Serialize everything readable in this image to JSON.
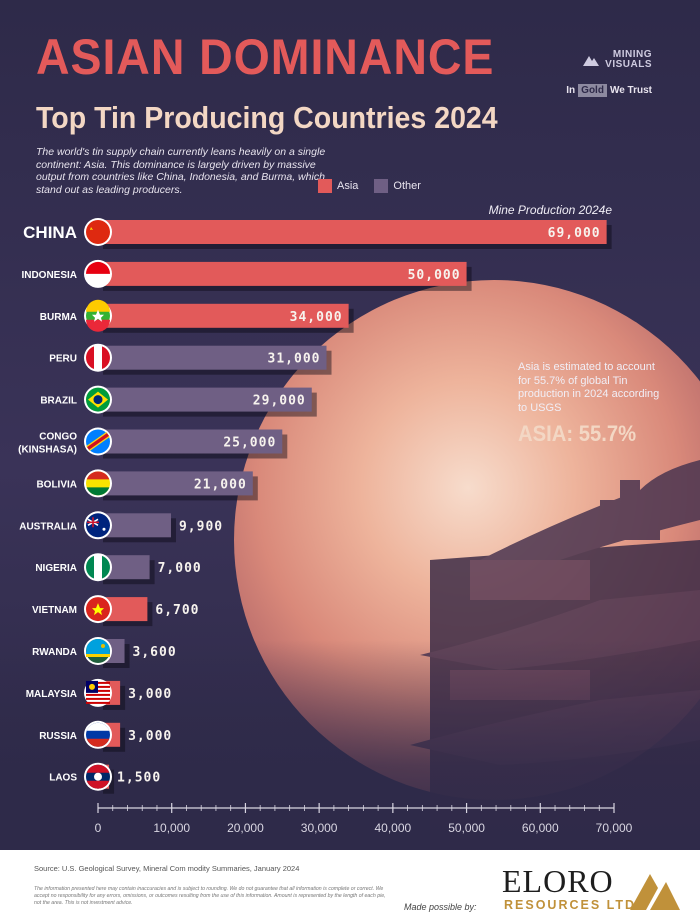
{
  "header": {
    "title": "ASIAN DOMINANCE",
    "subtitle": "Top Tin Producing Countries 2024",
    "intro": "The world's tin supply chain currently leans heavily on a single continent: Asia. This dominance is largely driven by massive output from countries like China, Indonesia, and Burma, which stand out as leading producers."
  },
  "brand": {
    "mining_visuals": "MINING\nVISUALS",
    "in": "In",
    "gold": "Gold",
    "we_trust": "We Trust"
  },
  "annotation": {
    "text": "Asia is estimated to account for 55.7% of global Tin production in 2024 according to USGS",
    "highlight": "ASIA: 55.7%"
  },
  "colors": {
    "asia": "#e25a5a",
    "other": "#6f5f84",
    "axis": "#d9d6e2"
  },
  "chart_data": {
    "type": "bar",
    "orientation": "horizontal",
    "title": "Top Tin Producing Countries 2024",
    "xlabel": "Mine Production 2024e",
    "xlim": [
      0,
      70000
    ],
    "xticks": [
      0,
      10000,
      20000,
      30000,
      40000,
      50000,
      60000,
      70000
    ],
    "xtick_labels": [
      "0",
      "10,000",
      "20,000",
      "30,000",
      "40,000",
      "50,000",
      "60,000",
      "70,000"
    ],
    "legend": [
      {
        "label": "Asia",
        "group": "asia"
      },
      {
        "label": "Other",
        "group": "other"
      }
    ],
    "bars": [
      {
        "country": "CHINA",
        "value": 69000,
        "label": "69,000",
        "group": "asia",
        "flag": "china-flag"
      },
      {
        "country": "INDONESIA",
        "value": 50000,
        "label": "50,000",
        "group": "asia",
        "flag": "indonesia-flag"
      },
      {
        "country": "BURMA",
        "value": 34000,
        "label": "34,000",
        "group": "asia",
        "flag": "burma-flag"
      },
      {
        "country": "PERU",
        "value": 31000,
        "label": "31,000",
        "group": "other",
        "flag": "peru-flag"
      },
      {
        "country": "BRAZIL",
        "value": 29000,
        "label": "29,000",
        "group": "other",
        "flag": "brazil-flag"
      },
      {
        "country": "CONGO\n(KINSHASA)",
        "value": 25000,
        "label": "25,000",
        "group": "other",
        "flag": "congo-flag"
      },
      {
        "country": "BOLIVIA",
        "value": 21000,
        "label": "21,000",
        "group": "other",
        "flag": "bolivia-flag"
      },
      {
        "country": "AUSTRALIA",
        "value": 9900,
        "label": "9,900",
        "group": "other",
        "flag": "australia-flag"
      },
      {
        "country": "NIGERIA",
        "value": 7000,
        "label": "7,000",
        "group": "other",
        "flag": "nigeria-flag"
      },
      {
        "country": "VIETNAM",
        "value": 6700,
        "label": "6,700",
        "group": "asia",
        "flag": "vietnam-flag"
      },
      {
        "country": "RWANDA",
        "value": 3600,
        "label": "3,600",
        "group": "other",
        "flag": "rwanda-flag"
      },
      {
        "country": "MALAYSIA",
        "value": 3000,
        "label": "3,000",
        "group": "asia",
        "flag": "malaysia-flag"
      },
      {
        "country": "RUSSIA",
        "value": 3000,
        "label": "3,000",
        "group": "asia",
        "flag": "russia-flag"
      },
      {
        "country": "LAOS",
        "value": 1500,
        "label": "1,500",
        "group": "asia",
        "flag": "laos-flag"
      }
    ]
  },
  "footer": {
    "source": "Source: U.S. Geological Survey, Mineral Com modity Summaries, January 2024",
    "disclaimer": "The information presented here may contain inaccuracies and is subject to rounding. We do not guarantee that all information is complete or correct. We accept no responsibility for any errors, omissions, or outcomes resulting from the use of this information. Amount is represented by the length of each pie, not the area. This is not investment advice.",
    "made_possible": "Made possible by:",
    "sponsor_name": "ELORO",
    "sponsor_sub": "RESOURCES LTD."
  }
}
